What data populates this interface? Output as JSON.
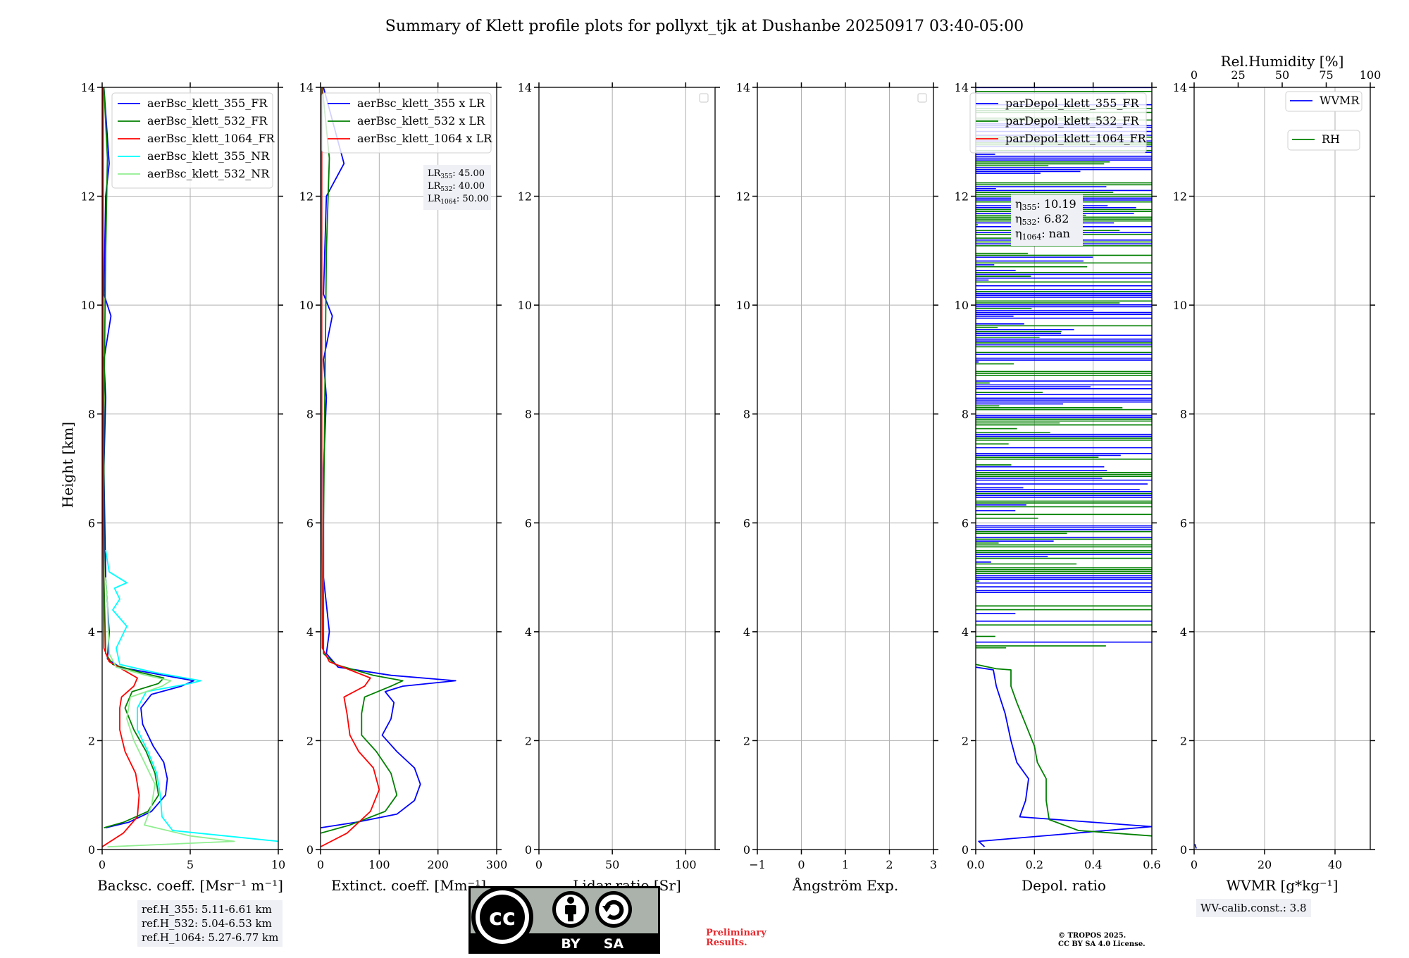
{
  "title": "Summary of Klett profile plots for pollyxt_tjk at Dushanbe 20250917 03:40-05:00",
  "y_axis_label": "Height [km]",
  "chart_data": [
    {
      "type": "line",
      "name": "backscatter",
      "xlabel": "Backsc. coeff. [Msr⁻¹ m⁻¹]",
      "xlim": [
        0,
        10
      ],
      "xticks": [
        0,
        5,
        10
      ],
      "ylim": [
        0,
        14
      ],
      "yticks": [
        0,
        2,
        4,
        6,
        8,
        10,
        12,
        14
      ],
      "grid": true,
      "legend_position": "top-right",
      "series": [
        {
          "name": "aerBsc_klett_355_FR",
          "color": "#0000ff",
          "points": [
            [
              0.2,
              0.4
            ],
            [
              1.5,
              0.5
            ],
            [
              2.8,
              0.7
            ],
            [
              3.6,
              1.0
            ],
            [
              3.7,
              1.3
            ],
            [
              3.5,
              1.6
            ],
            [
              2.9,
              1.9
            ],
            [
              2.3,
              2.3
            ],
            [
              2.2,
              2.6
            ],
            [
              2.8,
              2.85
            ],
            [
              4.5,
              3.0
            ],
            [
              5.2,
              3.1
            ],
            [
              3.5,
              3.2
            ],
            [
              1.0,
              3.35
            ],
            [
              0.3,
              3.5
            ],
            [
              0.4,
              4.0
            ],
            [
              0.2,
              5.0
            ],
            [
              0.1,
              7.0
            ],
            [
              0.2,
              8.3
            ],
            [
              0.1,
              9.0
            ],
            [
              0.5,
              9.8
            ],
            [
              0.1,
              10.2
            ],
            [
              0.2,
              12.0
            ],
            [
              0.4,
              12.6
            ],
            [
              0.1,
              14.0
            ]
          ]
        },
        {
          "name": "aerBsc_klett_532_FR",
          "color": "#008000",
          "points": [
            [
              0.1,
              0.4
            ],
            [
              1.2,
              0.5
            ],
            [
              2.6,
              0.7
            ],
            [
              3.2,
              1.0
            ],
            [
              3.0,
              1.4
            ],
            [
              2.5,
              1.8
            ],
            [
              1.8,
              2.2
            ],
            [
              1.3,
              2.6
            ],
            [
              1.7,
              2.9
            ],
            [
              3.2,
              3.05
            ],
            [
              3.5,
              3.15
            ],
            [
              2.2,
              3.25
            ],
            [
              0.6,
              3.4
            ],
            [
              0.2,
              3.6
            ],
            [
              0.1,
              5.0
            ],
            [
              0.1,
              8.0
            ],
            [
              0.2,
              11.0
            ],
            [
              0.3,
              12.7
            ],
            [
              0.1,
              14.0
            ]
          ]
        },
        {
          "name": "aerBsc_klett_1064_FR",
          "color": "#ff0000",
          "points": [
            [
              0.0,
              0.05
            ],
            [
              1.2,
              0.3
            ],
            [
              2.0,
              0.6
            ],
            [
              2.1,
              1.0
            ],
            [
              1.9,
              1.4
            ],
            [
              1.3,
              1.8
            ],
            [
              1.0,
              2.2
            ],
            [
              1.0,
              2.6
            ],
            [
              1.1,
              2.8
            ],
            [
              1.8,
              3.0
            ],
            [
              2.0,
              3.15
            ],
            [
              1.2,
              3.3
            ],
            [
              0.4,
              3.45
            ],
            [
              0.1,
              3.7
            ],
            [
              0.05,
              6.0
            ],
            [
              0.05,
              14.0
            ]
          ]
        },
        {
          "name": "aerBsc_klett_355_NR",
          "color": "#00ffff",
          "points": [
            [
              10.0,
              0.15
            ],
            [
              7.0,
              0.25
            ],
            [
              4.0,
              0.35
            ],
            [
              3.4,
              0.6
            ],
            [
              3.3,
              1.0
            ],
            [
              3.1,
              1.4
            ],
            [
              2.6,
              1.8
            ],
            [
              2.0,
              2.2
            ],
            [
              2.0,
              2.6
            ],
            [
              2.5,
              2.9
            ],
            [
              5.0,
              3.05
            ],
            [
              5.6,
              3.1
            ],
            [
              3.0,
              3.25
            ],
            [
              1.0,
              3.4
            ],
            [
              0.8,
              3.7
            ],
            [
              1.4,
              4.1
            ],
            [
              0.6,
              4.4
            ],
            [
              1.0,
              4.6
            ],
            [
              0.7,
              4.8
            ],
            [
              1.4,
              4.9
            ],
            [
              0.4,
              5.1
            ],
            [
              0.2,
              5.5
            ]
          ]
        },
        {
          "name": "aerBsc_klett_532_NR",
          "color": "#90ee90",
          "points": [
            [
              0.3,
              0.05
            ],
            [
              7.5,
              0.15
            ],
            [
              5.0,
              0.25
            ],
            [
              2.4,
              0.45
            ],
            [
              2.8,
              0.8
            ],
            [
              3.0,
              1.2
            ],
            [
              2.4,
              1.6
            ],
            [
              1.8,
              2.0
            ],
            [
              1.4,
              2.4
            ],
            [
              1.6,
              2.8
            ],
            [
              3.4,
              3.0
            ],
            [
              3.9,
              3.1
            ],
            [
              2.5,
              3.2
            ],
            [
              0.8,
              3.35
            ],
            [
              0.4,
              3.6
            ],
            [
              0.3,
              4.5
            ],
            [
              0.2,
              5.0
            ]
          ]
        }
      ]
    },
    {
      "type": "line",
      "name": "extinction",
      "xlabel": "Extinct. coeff. [Mm⁻¹]",
      "xlim": [
        0,
        300
      ],
      "xticks": [
        0,
        100,
        200,
        300
      ],
      "ylim": [
        0,
        14
      ],
      "yticks": [
        0,
        2,
        4,
        6,
        8,
        10,
        12,
        14
      ],
      "grid": true,
      "legend_position": "top-right",
      "annotation": [
        "LR355: 45.00",
        "LR532: 40.00",
        "LR1064: 50.00"
      ],
      "series": [
        {
          "name": "aerBsc_klett_355 x LR",
          "color": "#0000ff",
          "points": [
            [
              0,
              0.4
            ],
            [
              60,
              0.5
            ],
            [
              130,
              0.65
            ],
            [
              160,
              0.9
            ],
            [
              170,
              1.2
            ],
            [
              160,
              1.5
            ],
            [
              130,
              1.8
            ],
            [
              105,
              2.1
            ],
            [
              120,
              2.4
            ],
            [
              125,
              2.7
            ],
            [
              110,
              2.9
            ],
            [
              140,
              3.0
            ],
            [
              230,
              3.1
            ],
            [
              120,
              3.2
            ],
            [
              30,
              3.35
            ],
            [
              10,
              3.6
            ],
            [
              15,
              4.0
            ],
            [
              5,
              5.0
            ],
            [
              5,
              7.0
            ],
            [
              10,
              8.3
            ],
            [
              5,
              9.0
            ],
            [
              20,
              9.8
            ],
            [
              5,
              10.2
            ],
            [
              10,
              12.0
            ],
            [
              40,
              12.6
            ],
            [
              5,
              14.0
            ]
          ]
        },
        {
          "name": "aerBsc_klett_532 x LR",
          "color": "#008000",
          "points": [
            [
              0,
              0.3
            ],
            [
              50,
              0.45
            ],
            [
              110,
              0.7
            ],
            [
              130,
              1.0
            ],
            [
              120,
              1.4
            ],
            [
              95,
              1.8
            ],
            [
              70,
              2.1
            ],
            [
              70,
              2.5
            ],
            [
              75,
              2.8
            ],
            [
              120,
              3.0
            ],
            [
              140,
              3.1
            ],
            [
              90,
              3.2
            ],
            [
              25,
              3.4
            ],
            [
              5,
              3.6
            ],
            [
              5,
              6.0
            ],
            [
              10,
              11.0
            ],
            [
              15,
              12.7
            ],
            [
              3,
              14.0
            ]
          ]
        },
        {
          "name": "aerBsc_klett_1064 x LR",
          "color": "#ff0000",
          "points": [
            [
              0,
              0.05
            ],
            [
              45,
              0.3
            ],
            [
              85,
              0.7
            ],
            [
              100,
              1.1
            ],
            [
              90,
              1.5
            ],
            [
              65,
              1.8
            ],
            [
              50,
              2.1
            ],
            [
              45,
              2.5
            ],
            [
              40,
              2.8
            ],
            [
              75,
              3.0
            ],
            [
              85,
              3.15
            ],
            [
              50,
              3.3
            ],
            [
              15,
              3.45
            ],
            [
              3,
              3.7
            ],
            [
              2,
              6.0
            ],
            [
              2,
              14.0
            ]
          ]
        }
      ]
    },
    {
      "type": "line",
      "name": "lidar-ratio",
      "xlabel": "Lidar ratio [Sr]",
      "xlim": [
        0,
        120
      ],
      "xticks": [
        0,
        50,
        100
      ],
      "ylim": [
        0,
        14
      ],
      "yticks": [
        0,
        2,
        4,
        6,
        8,
        10,
        12,
        14
      ],
      "grid": true,
      "series": []
    },
    {
      "type": "line",
      "name": "angstrom",
      "xlabel": "Ångström Exp.",
      "xlim": [
        -1,
        3
      ],
      "xticks": [
        -1,
        0,
        1,
        2,
        3
      ],
      "ylim": [
        0,
        14
      ],
      "yticks": [
        0,
        2,
        4,
        6,
        8,
        10,
        12,
        14
      ],
      "grid": true,
      "series": []
    },
    {
      "type": "line",
      "name": "depolarization",
      "xlabel": "Depol. ratio",
      "xlim": [
        0,
        0.6
      ],
      "xticks": [
        0.0,
        0.2,
        0.4,
        0.6
      ],
      "ylim": [
        0,
        14
      ],
      "yticks": [
        0,
        2,
        4,
        6,
        8,
        10,
        12,
        14
      ],
      "grid": true,
      "legend_position": "top-right",
      "annotation": [
        "η355: 10.19",
        "η532: 6.82",
        "η1064: nan"
      ],
      "series": [
        {
          "name": "parDepol_klett_355_FR",
          "color": "#0000ff",
          "points": [
            [
              0.03,
              0.05
            ],
            [
              0.01,
              0.15
            ],
            [
              0.6,
              0.42
            ],
            [
              0.15,
              0.6
            ],
            [
              0.17,
              0.9
            ],
            [
              0.18,
              1.3
            ],
            [
              0.14,
              1.6
            ],
            [
              0.12,
              2.0
            ],
            [
              0.1,
              2.5
            ],
            [
              0.07,
              3.0
            ],
            [
              0.06,
              3.3
            ],
            [
              0.0,
              3.35
            ]
          ]
        },
        {
          "name": "parDepol_klett_532_FR",
          "color": "#008000",
          "points": [
            [
              0.6,
              0.25
            ],
            [
              0.35,
              0.35
            ],
            [
              0.25,
              0.55
            ],
            [
              0.24,
              0.9
            ],
            [
              0.24,
              1.3
            ],
            [
              0.21,
              1.6
            ],
            [
              0.2,
              1.9
            ],
            [
              0.17,
              2.3
            ],
            [
              0.14,
              2.7
            ],
            [
              0.12,
              3.0
            ],
            [
              0.12,
              3.3
            ],
            [
              0.07,
              3.32
            ],
            [
              0.0,
              3.4
            ]
          ]
        },
        {
          "name": "parDepol_klett_1064_FR",
          "color": "#ff0000",
          "points": []
        }
      ]
    },
    {
      "type": "line",
      "name": "water-vapor",
      "xlabel": "WVMR [g*kg⁻¹]",
      "xlim": [
        0,
        50
      ],
      "xticks": [
        0,
        20,
        40
      ],
      "top_xlabel": "Rel.Humidity [%]",
      "top_xlim": [
        0,
        100
      ],
      "top_xticks": [
        0,
        25,
        50,
        75,
        100
      ],
      "ylim": [
        0,
        14
      ],
      "yticks": [
        0,
        2,
        4,
        6,
        8,
        10,
        12,
        14
      ],
      "grid": true,
      "legend_position": "top-right",
      "series": [
        {
          "name": "WVMR",
          "color": "#0000ff",
          "points": [
            [
              0.6,
              0.02
            ],
            [
              0.2,
              0.1
            ]
          ]
        },
        {
          "name": "RH",
          "color": "#008000",
          "points": []
        }
      ]
    }
  ],
  "ref_heights": [
    "ref.H_355: 5.11-6.61 km",
    "ref.H_532: 5.04-6.53 km",
    "ref.H_1064: 5.27-6.77 km"
  ],
  "wv_calib": "WV-calib.const.: 3.8",
  "license_badge": {
    "top": "cc",
    "by": "BY",
    "sa": "SA"
  },
  "preliminary": [
    "Preliminary",
    "Results."
  ],
  "copyright": [
    "© TROPOS 2025.",
    "CC BY SA 4.0 License."
  ],
  "lr_annotation": [
    {
      "base": "LR",
      "sub": "355",
      "value": ": 45.00"
    },
    {
      "base": "LR",
      "sub": "532",
      "value": ": 40.00"
    },
    {
      "base": "LR",
      "sub": "1064",
      "value": ": 50.00"
    }
  ],
  "eta_annotation": [
    {
      "base": "η",
      "sub": "355",
      "value": ": 10.19"
    },
    {
      "base": "η",
      "sub": "532",
      "value": ": 6.82"
    },
    {
      "base": "η",
      "sub": "1064",
      "value": ": nan"
    }
  ]
}
